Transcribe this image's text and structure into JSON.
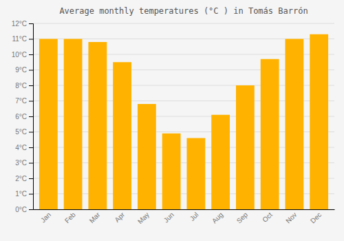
{
  "chart_data": {
    "type": "bar",
    "title": "Average monthly temperatures (°C ) in Tomás Barrón",
    "categories": [
      "Jan",
      "Feb",
      "Mar",
      "Apr",
      "May",
      "Jun",
      "Jul",
      "Aug",
      "Sep",
      "Oct",
      "Nov",
      "Dec"
    ],
    "values": [
      11.0,
      11.0,
      10.8,
      9.5,
      6.8,
      4.9,
      4.6,
      6.1,
      8.0,
      9.7,
      11.0,
      11.3
    ],
    "color": "#FFB300",
    "ylim": [
      0,
      12
    ],
    "yticks": [
      {
        "value": 0,
        "label": "0°C"
      },
      {
        "value": 1,
        "label": "1°C"
      },
      {
        "value": 2,
        "label": "2°C"
      },
      {
        "value": 3,
        "label": "3°C"
      },
      {
        "value": 4,
        "label": "4°C"
      },
      {
        "value": 5,
        "label": "5°C"
      },
      {
        "value": 6,
        "label": "6°C"
      },
      {
        "value": 7,
        "label": "7°C"
      },
      {
        "value": 8,
        "label": "8°C"
      },
      {
        "value": 9,
        "label": "9°C"
      },
      {
        "value": 10,
        "label": "10°C"
      },
      {
        "value": 11,
        "label": "11°C"
      },
      {
        "value": 12,
        "label": "12°C"
      }
    ],
    "grid": true
  }
}
